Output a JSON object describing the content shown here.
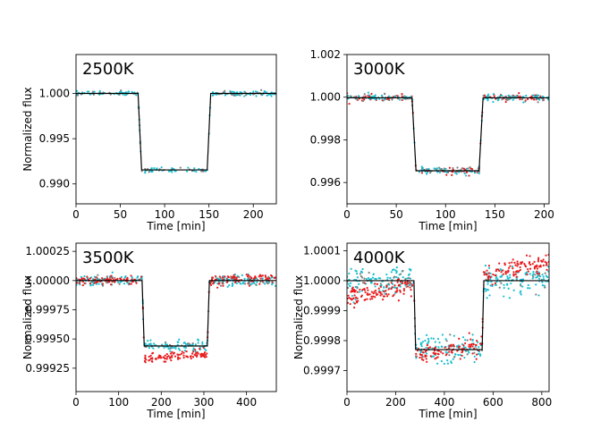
{
  "colors": {
    "cyan": "#17becf",
    "red": "#e8191b",
    "gray": "#7f7f7f",
    "line": "#000000"
  },
  "chart_data": [
    {
      "type": "scatter",
      "title": "2500K",
      "xlabel": "Time [min]",
      "ylabel": "Normalized flux",
      "xlim": [
        0,
        226
      ],
      "ylim": [
        0.9878,
        1.0043
      ],
      "xticks": [
        0,
        50,
        100,
        150,
        200
      ],
      "xtick_labels": [
        "0",
        "50",
        "100",
        "150",
        "200"
      ],
      "yticks": [
        0.99,
        0.995,
        1.0
      ],
      "ytick_labels": [
        "0.990",
        "0.995",
        "1.000"
      ],
      "model": {
        "baseline": 1.0,
        "depth_level": 0.99155,
        "ingress_start": 70,
        "ingress_end": 74,
        "egress_start": 148,
        "egress_end": 152
      },
      "series": [
        {
          "name": "cyan",
          "color": "cyan",
          "noise": 0.00013,
          "n": 170,
          "bias_in": 0,
          "bias_out": 0,
          "slope": 0
        },
        {
          "name": "gray",
          "color": "gray",
          "noise": 0.00013,
          "n": 60,
          "bias_in": 0,
          "bias_out": 0,
          "slope": 0
        }
      ]
    },
    {
      "type": "scatter",
      "title": "3000K",
      "xlabel": "Time [min]",
      "ylabel": "",
      "xlim": [
        0,
        205
      ],
      "ylim": [
        0.995,
        1.002
      ],
      "xticks": [
        0,
        50,
        100,
        150,
        200
      ],
      "xtick_labels": [
        "0",
        "50",
        "100",
        "150",
        "200"
      ],
      "yticks": [
        0.996,
        0.998,
        1.0,
        1.002
      ],
      "ytick_labels": [
        "0.996",
        "0.998",
        "1.000",
        "1.002"
      ],
      "model": {
        "baseline": 0.99997,
        "depth_level": 0.99655,
        "ingress_start": 66,
        "ingress_end": 70,
        "egress_start": 134,
        "egress_end": 138
      },
      "series": [
        {
          "name": "red",
          "color": "red",
          "noise": 8e-05,
          "n": 120,
          "bias_in": 0,
          "bias_out": 0,
          "slope": 0
        },
        {
          "name": "gray",
          "color": "gray",
          "noise": 8e-05,
          "n": 80,
          "bias_in": 0,
          "bias_out": 0,
          "slope": 0
        },
        {
          "name": "cyan",
          "color": "cyan",
          "noise": 8e-05,
          "n": 150,
          "bias_in": 0,
          "bias_out": 0,
          "slope": 0
        }
      ]
    },
    {
      "type": "scatter",
      "title": "3500K",
      "xlabel": "Time [min]",
      "ylabel": "Normalized flux",
      "xlim": [
        0,
        470
      ],
      "ylim": [
        0.99905,
        1.00032
      ],
      "xticks": [
        0,
        100,
        200,
        300,
        400
      ],
      "xtick_labels": [
        "0",
        "100",
        "200",
        "300",
        "400"
      ],
      "yticks": [
        0.99925,
        0.9995,
        0.99975,
        1.0,
        1.00025
      ],
      "ytick_labels": [
        "0.99925",
        "0.99950",
        "0.99975",
        "1.00000",
        "1.00025"
      ],
      "model": {
        "baseline": 1.0,
        "depth_level": 0.99944,
        "ingress_start": 155,
        "ingress_end": 160,
        "egress_start": 308,
        "egress_end": 313
      },
      "series": [
        {
          "name": "cyan",
          "color": "cyan",
          "noise": 2.2e-05,
          "n": 260,
          "bias_in": 0,
          "bias_out": 0,
          "slope": 0
        },
        {
          "name": "red",
          "color": "red",
          "noise": 2.2e-05,
          "n": 260,
          "bias_in": -9e-05,
          "bias_out": 0,
          "slope": 3.5e-07
        },
        {
          "name": "gray",
          "color": "gray",
          "noise": 2.2e-05,
          "n": 50,
          "bias_in": 0,
          "bias_out": 0,
          "slope": 0
        }
      ]
    },
    {
      "type": "scatter",
      "title": "4000K",
      "xlabel": "Time [min]",
      "ylabel": "Normalized flux",
      "xlim": [
        0,
        830
      ],
      "ylim": [
        0.99963,
        1.000125
      ],
      "xticks": [
        0,
        200,
        400,
        600,
        800
      ],
      "xtick_labels": [
        "0",
        "200",
        "400",
        "600",
        "800"
      ],
      "yticks": [
        0.9997,
        0.9998,
        0.9999,
        1.0,
        1.0001
      ],
      "ytick_labels": [
        "0.9997",
        "0.9998",
        "0.9999",
        "1.0000",
        "1.0001"
      ],
      "model": {
        "baseline": 1.0,
        "depth_level": 0.99977,
        "ingress_start": 275,
        "ingress_end": 282,
        "egress_start": 555,
        "egress_end": 562
      },
      "series": [
        {
          "name": "cyan",
          "color": "cyan",
          "noise": 2.2e-05,
          "n": 320,
          "bias_in": 0,
          "bias_out": 0,
          "slope": 0
        },
        {
          "name": "red",
          "color": "red",
          "noise": 1.6e-05,
          "n": 320,
          "bias_in": 0,
          "bias_out": 0,
          "slope": 2.2e-07,
          "ramp": true
        },
        {
          "name": "gray",
          "color": "gray",
          "noise": 2e-05,
          "n": 50,
          "bias_in": 0,
          "bias_out": 0,
          "slope": 0
        }
      ]
    }
  ]
}
